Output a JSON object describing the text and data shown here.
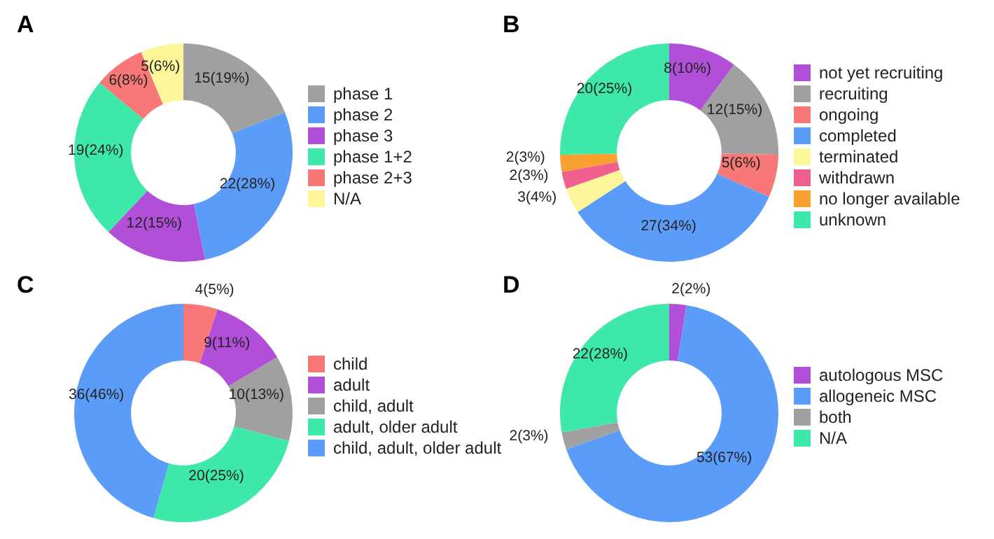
{
  "chart_data": [
    {
      "type": "donut",
      "title": "A",
      "categories": [
        "phase 1",
        "phase 2",
        "phase 3",
        "phase 1+2",
        "phase 2+3",
        "N/A"
      ],
      "values": [
        15,
        22,
        12,
        19,
        6,
        5
      ],
      "value_labels": [
        "15(19%)",
        "22(28%)",
        "12(15%)",
        "19(24%)",
        "6(8%)",
        "5(6%)"
      ],
      "colors": [
        "#a0a0a0",
        "#5b9cf8",
        "#b24fd8",
        "#3ee8a8",
        "#f87878",
        "#fdf59a"
      ],
      "legend": "right"
    },
    {
      "type": "donut",
      "title": "B",
      "categories": [
        "not yet recruiting",
        "recruiting",
        "ongoing",
        "completed",
        "terminated",
        "withdrawn",
        "no longer available",
        "unknown"
      ],
      "values": [
        8,
        12,
        5,
        27,
        3,
        2,
        2,
        20
      ],
      "value_labels": [
        "8(10%)",
        "12(15%)",
        "5(6%)",
        "27(34%)",
        "3(4%)",
        "2(3%)",
        "2(3%)",
        "20(25%)"
      ],
      "colors": [
        "#b24fd8",
        "#a0a0a0",
        "#f87878",
        "#5b9cf8",
        "#fdf59a",
        "#f0608f",
        "#f8a030",
        "#3ee8a8"
      ],
      "legend": "right"
    },
    {
      "type": "donut",
      "title": "C",
      "categories": [
        "child",
        "adult",
        "child, adult",
        "adult, older adult",
        "child, adult, older adult"
      ],
      "values": [
        4,
        9,
        10,
        20,
        36
      ],
      "value_labels": [
        "4(5%)",
        "9(11%)",
        "10(13%)",
        "20(25%)",
        "36(46%)"
      ],
      "colors": [
        "#f87878",
        "#b24fd8",
        "#a0a0a0",
        "#3ee8a8",
        "#5b9cf8"
      ],
      "legend": "right"
    },
    {
      "type": "donut",
      "title": "D",
      "categories": [
        "autologous MSC",
        "allogeneic MSC",
        "both",
        "N/A"
      ],
      "values": [
        2,
        53,
        2,
        22
      ],
      "value_labels": [
        "2(2%)",
        "53(67%)",
        "2(3%)",
        "22(28%)"
      ],
      "colors": [
        "#b24fd8",
        "#5b9cf8",
        "#a0a0a0",
        "#3ee8a8"
      ],
      "legend": "right"
    }
  ]
}
